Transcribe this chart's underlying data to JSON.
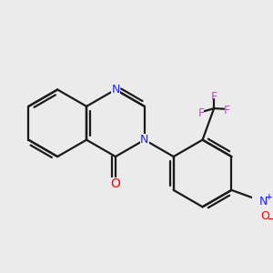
{
  "background_color": "#ebebeb",
  "bond_color": "#1a1a1a",
  "N_color": "#2020ff",
  "O_color": "#ff0000",
  "F_color": "#cc44cc",
  "N_plus_color": "#2020ff",
  "line_width": 1.6,
  "figsize": [
    3.0,
    3.0
  ],
  "dpi": 100,
  "xlim": [
    0.0,
    5.5
  ],
  "ylim": [
    -0.5,
    5.5
  ]
}
